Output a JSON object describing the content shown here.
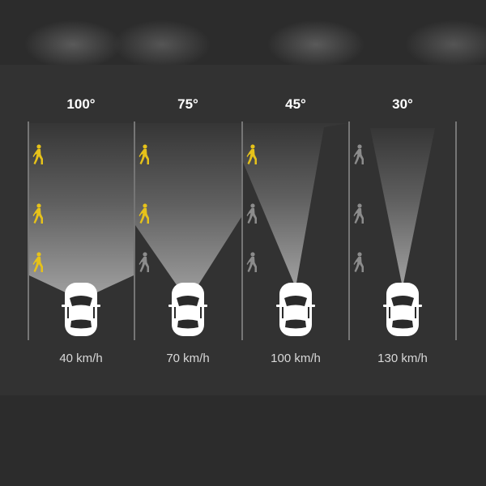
{
  "colors": {
    "background": "#2a2a2a",
    "panel": "#323232",
    "beam": "#ffffff",
    "pedestrian_visible": "#e6c21a",
    "pedestrian_hidden": "#8c8c8c",
    "lane_line": "#9a9a9a",
    "car_body": "#ffffff"
  },
  "panels": [
    {
      "angle_label": "100°",
      "speed_label": "40 km/h",
      "pedestrians": [
        "visible",
        "visible",
        "visible"
      ],
      "pedestrian_icon": "walking-person-icon"
    },
    {
      "angle_label": "75°",
      "speed_label": "70 km/h",
      "pedestrians": [
        "visible",
        "visible",
        "hidden"
      ],
      "pedestrian_icon": "walking-person-icon"
    },
    {
      "angle_label": "45°",
      "speed_label": "100 km/h",
      "pedestrians": [
        "visible",
        "hidden",
        "hidden"
      ],
      "pedestrian_icon": "walking-person-icon"
    },
    {
      "angle_label": "30°",
      "speed_label": "130 km/h",
      "pedestrians": [
        "hidden",
        "hidden",
        "hidden"
      ],
      "pedestrian_icon": "walking-person-icon"
    }
  ]
}
